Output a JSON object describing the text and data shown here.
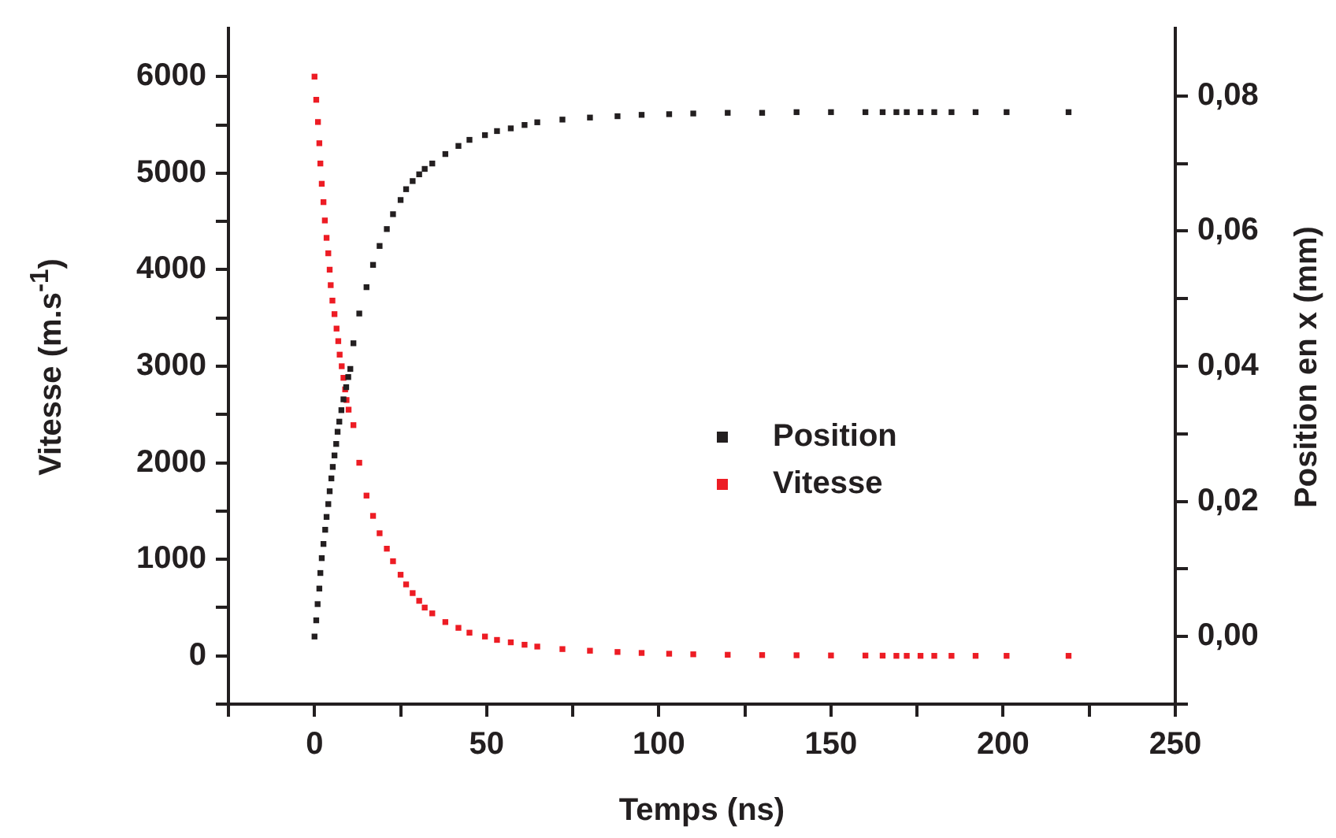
{
  "chart_data": {
    "type": "scatter",
    "xlabel": "Temps (ns)",
    "ylabel": "Vitesse (m.s$^{-1}$)",
    "y2label": "Position en x (mm)",
    "xlim": [
      -25,
      250
    ],
    "xticks": [
      {
        "value": -25,
        "label": null
      },
      0,
      {
        "value": 25,
        "label": null
      },
      50,
      {
        "value": 75,
        "label": null
      },
      100,
      {
        "value": 125,
        "label": null
      },
      150,
      {
        "value": 175,
        "label": null
      },
      200,
      {
        "value": 225,
        "label": null
      },
      250
    ],
    "ylim": [
      -500,
      6500
    ],
    "yticks": [
      {
        "value": -500,
        "label": null
      },
      0,
      {
        "value": 500,
        "label": null
      },
      1000,
      {
        "value": 1500,
        "label": null
      },
      2000,
      {
        "value": 2500,
        "label": null
      },
      3000,
      {
        "value": 3500,
        "label": null
      },
      4000,
      {
        "value": 4500,
        "label": null
      },
      5000,
      {
        "value": 5500,
        "label": null
      },
      6000
    ],
    "y2lim": [
      -0.01,
      0.09
    ],
    "y2ticks": [
      {
        "value": -0.01,
        "label": null
      },
      {
        "value": 0,
        "label": "0,00"
      },
      {
        "value": 0.01,
        "label": null
      },
      {
        "value": 0.02,
        "label": "0,02"
      },
      {
        "value": 0.03,
        "label": null
      },
      {
        "value": 0.04,
        "label": "0,04"
      },
      {
        "value": 0.05,
        "label": null
      },
      {
        "value": 0.06,
        "label": "0,06"
      },
      {
        "value": 0.07,
        "label": null
      },
      {
        "value": 0.08,
        "label": "0,08"
      }
    ],
    "grid": false,
    "legend": "right",
    "marker": "square",
    "series": [
      {
        "name": "Position",
        "color": "#231f20",
        "axis": "y2",
        "x": [
          0,
          0.5,
          0.9,
          1.4,
          1.7,
          2.1,
          2.6,
          3.1,
          3.5,
          4,
          4.4,
          4.9,
          5.3,
          5.8,
          6.3,
          6.7,
          7.2,
          7.8,
          8.4,
          9.2,
          9.8,
          10.4,
          11.3,
          13,
          15.1,
          17,
          18.9,
          21,
          22.8,
          25,
          26.6,
          28.5,
          30.4,
          32,
          34.2,
          38,
          41.8,
          45,
          49.5,
          53,
          57,
          61,
          64.7,
          72,
          80,
          88,
          95,
          103,
          110,
          120,
          130,
          140,
          150,
          160,
          165,
          169,
          172,
          176,
          180,
          185,
          192,
          201,
          219
        ],
        "values": [
          0,
          0.0024,
          0.0048,
          0.0071,
          0.0094,
          0.0116,
          0.0137,
          0.0158,
          0.0177,
          0.0196,
          0.0215,
          0.0234,
          0.0251,
          0.0268,
          0.0285,
          0.0303,
          0.0318,
          0.0335,
          0.0351,
          0.0369,
          0.0384,
          0.0396,
          0.0434,
          0.0478,
          0.0517,
          0.055,
          0.0578,
          0.0603,
          0.0625,
          0.0646,
          0.0662,
          0.0674,
          0.0684,
          0.0692,
          0.07,
          0.0714,
          0.0726,
          0.0735,
          0.0742,
          0.0748,
          0.0752,
          0.0757,
          0.0761,
          0.0765,
          0.0768,
          0.077,
          0.0772,
          0.0773,
          0.0774,
          0.0775,
          0.0775,
          0.0776,
          0.0776,
          0.0776,
          0.0776,
          0.0776,
          0.0776,
          0.0776,
          0.0776,
          0.0776,
          0.0776,
          0.0776,
          0.0776
        ]
      },
      {
        "name": "Vitesse",
        "color": "#ed1c24",
        "axis": "y",
        "x": [
          0,
          0.5,
          1,
          1.4,
          1.7,
          2.1,
          2.6,
          3,
          3.5,
          4,
          4.4,
          4.7,
          5.2,
          5.8,
          6.4,
          6.9,
          7.3,
          7.9,
          8.4,
          8.9,
          9.3,
          9.9,
          11.3,
          13,
          15.1,
          17,
          18.9,
          21,
          22.8,
          25,
          26.6,
          28.5,
          30.4,
          32,
          34.2,
          38,
          41.8,
          45,
          49.5,
          53,
          57,
          61,
          64.7,
          72,
          80,
          88,
          95,
          103,
          110,
          120,
          130,
          140,
          150,
          160,
          165,
          169,
          172,
          176,
          180,
          185,
          192,
          201,
          219
        ],
        "values": [
          6000,
          5760,
          5530,
          5310,
          5100,
          4890,
          4700,
          4510,
          4330,
          4170,
          4000,
          3840,
          3680,
          3540,
          3390,
          3260,
          3120,
          3000,
          2880,
          2760,
          2650,
          2550,
          2390,
          2000,
          1660,
          1450,
          1270,
          1110,
          980,
          840,
          740,
          650,
          570,
          500,
          440,
          350,
          290,
          240,
          200,
          165,
          140,
          115,
          96,
          70,
          53,
          40,
          30,
          22,
          16,
          11,
          8,
          6,
          4,
          3,
          2,
          0,
          0,
          0,
          0,
          0,
          0,
          0,
          0
        ]
      }
    ]
  }
}
